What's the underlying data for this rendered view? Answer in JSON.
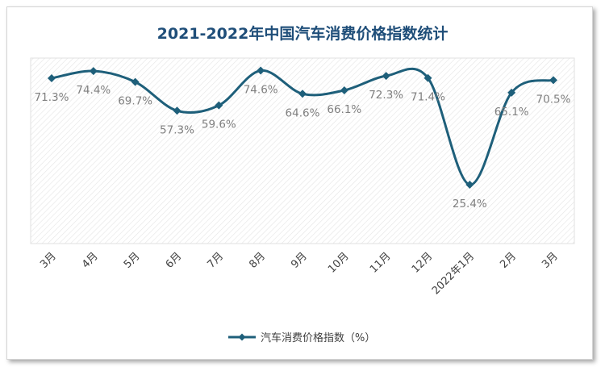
{
  "chart_data": {
    "type": "line",
    "title": "2021-2022年中国汽车消费价格指数统计",
    "categories": [
      "3月",
      "4月",
      "5月",
      "6月",
      "7月",
      "8月",
      "9月",
      "10月",
      "11月",
      "12月",
      "2022年1月",
      "2月",
      "3月"
    ],
    "series": [
      {
        "name": "汽车消费价格指数（%）",
        "values": [
          71.3,
          74.4,
          69.7,
          57.3,
          59.6,
          74.6,
          64.6,
          66.1,
          72.3,
          71.4,
          25.4,
          65.1,
          70.5
        ],
        "labels": [
          "71.3%",
          "74.4%",
          "69.7%",
          "57.3%",
          "59.6%",
          "74.6%",
          "64.6%",
          "66.1%",
          "72.3%",
          "71.4%",
          "25.4%",
          "65.1%",
          "70.5%"
        ]
      }
    ],
    "ylim": [
      0,
      80
    ],
    "grid": false,
    "legend_position": "bottom",
    "colors": {
      "line": "#1e5f7a",
      "title": "#1f4e79",
      "label": "#7f7f7f",
      "plot_hatch": "#e4e4e4"
    }
  }
}
